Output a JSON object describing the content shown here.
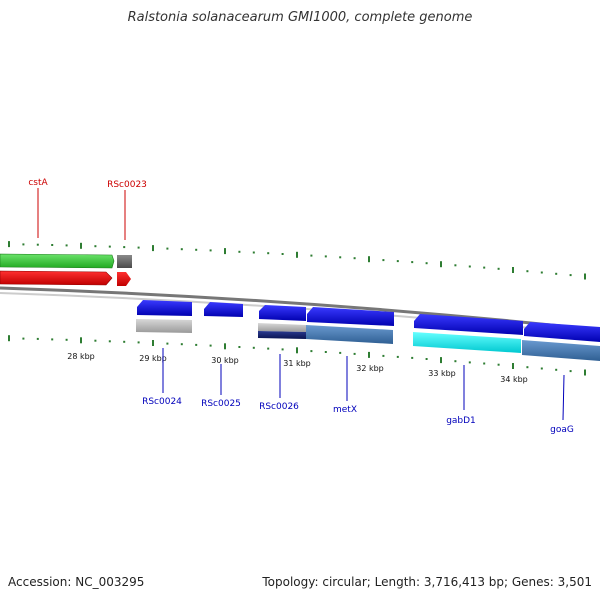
{
  "title": "Ralstonia solanacearum GMI1000, complete genome",
  "footer": {
    "accession": "Accession: NC_003295",
    "summary": "Topology: circular; Length: 3,716,413 bp; Genes: 3,501"
  },
  "colors": {
    "top_label": "#cc0000",
    "bottom_label": "#0000bb",
    "tick": "#2e7d32",
    "backbone": "#888888",
    "forward_gene": "#0000ee",
    "green_track": "#33cc33",
    "red_track": "#ee0000"
  },
  "scale": {
    "ticks": [
      {
        "label": "28 kbp"
      },
      {
        "label": "29 kbp"
      },
      {
        "label": "30 kbp"
      },
      {
        "label": "31 kbp"
      },
      {
        "label": "32 kbp"
      },
      {
        "label": "33 kbp"
      },
      {
        "label": "34 kbp"
      }
    ]
  },
  "genes_top": [
    {
      "label": "cstA"
    },
    {
      "label": "RSc0023"
    }
  ],
  "genes_bottom": [
    {
      "label": "RSc0024"
    },
    {
      "label": "RSc0025"
    },
    {
      "label": "RSc0026"
    },
    {
      "label": "metX"
    },
    {
      "label": "gabD1"
    },
    {
      "label": "goaG"
    }
  ]
}
